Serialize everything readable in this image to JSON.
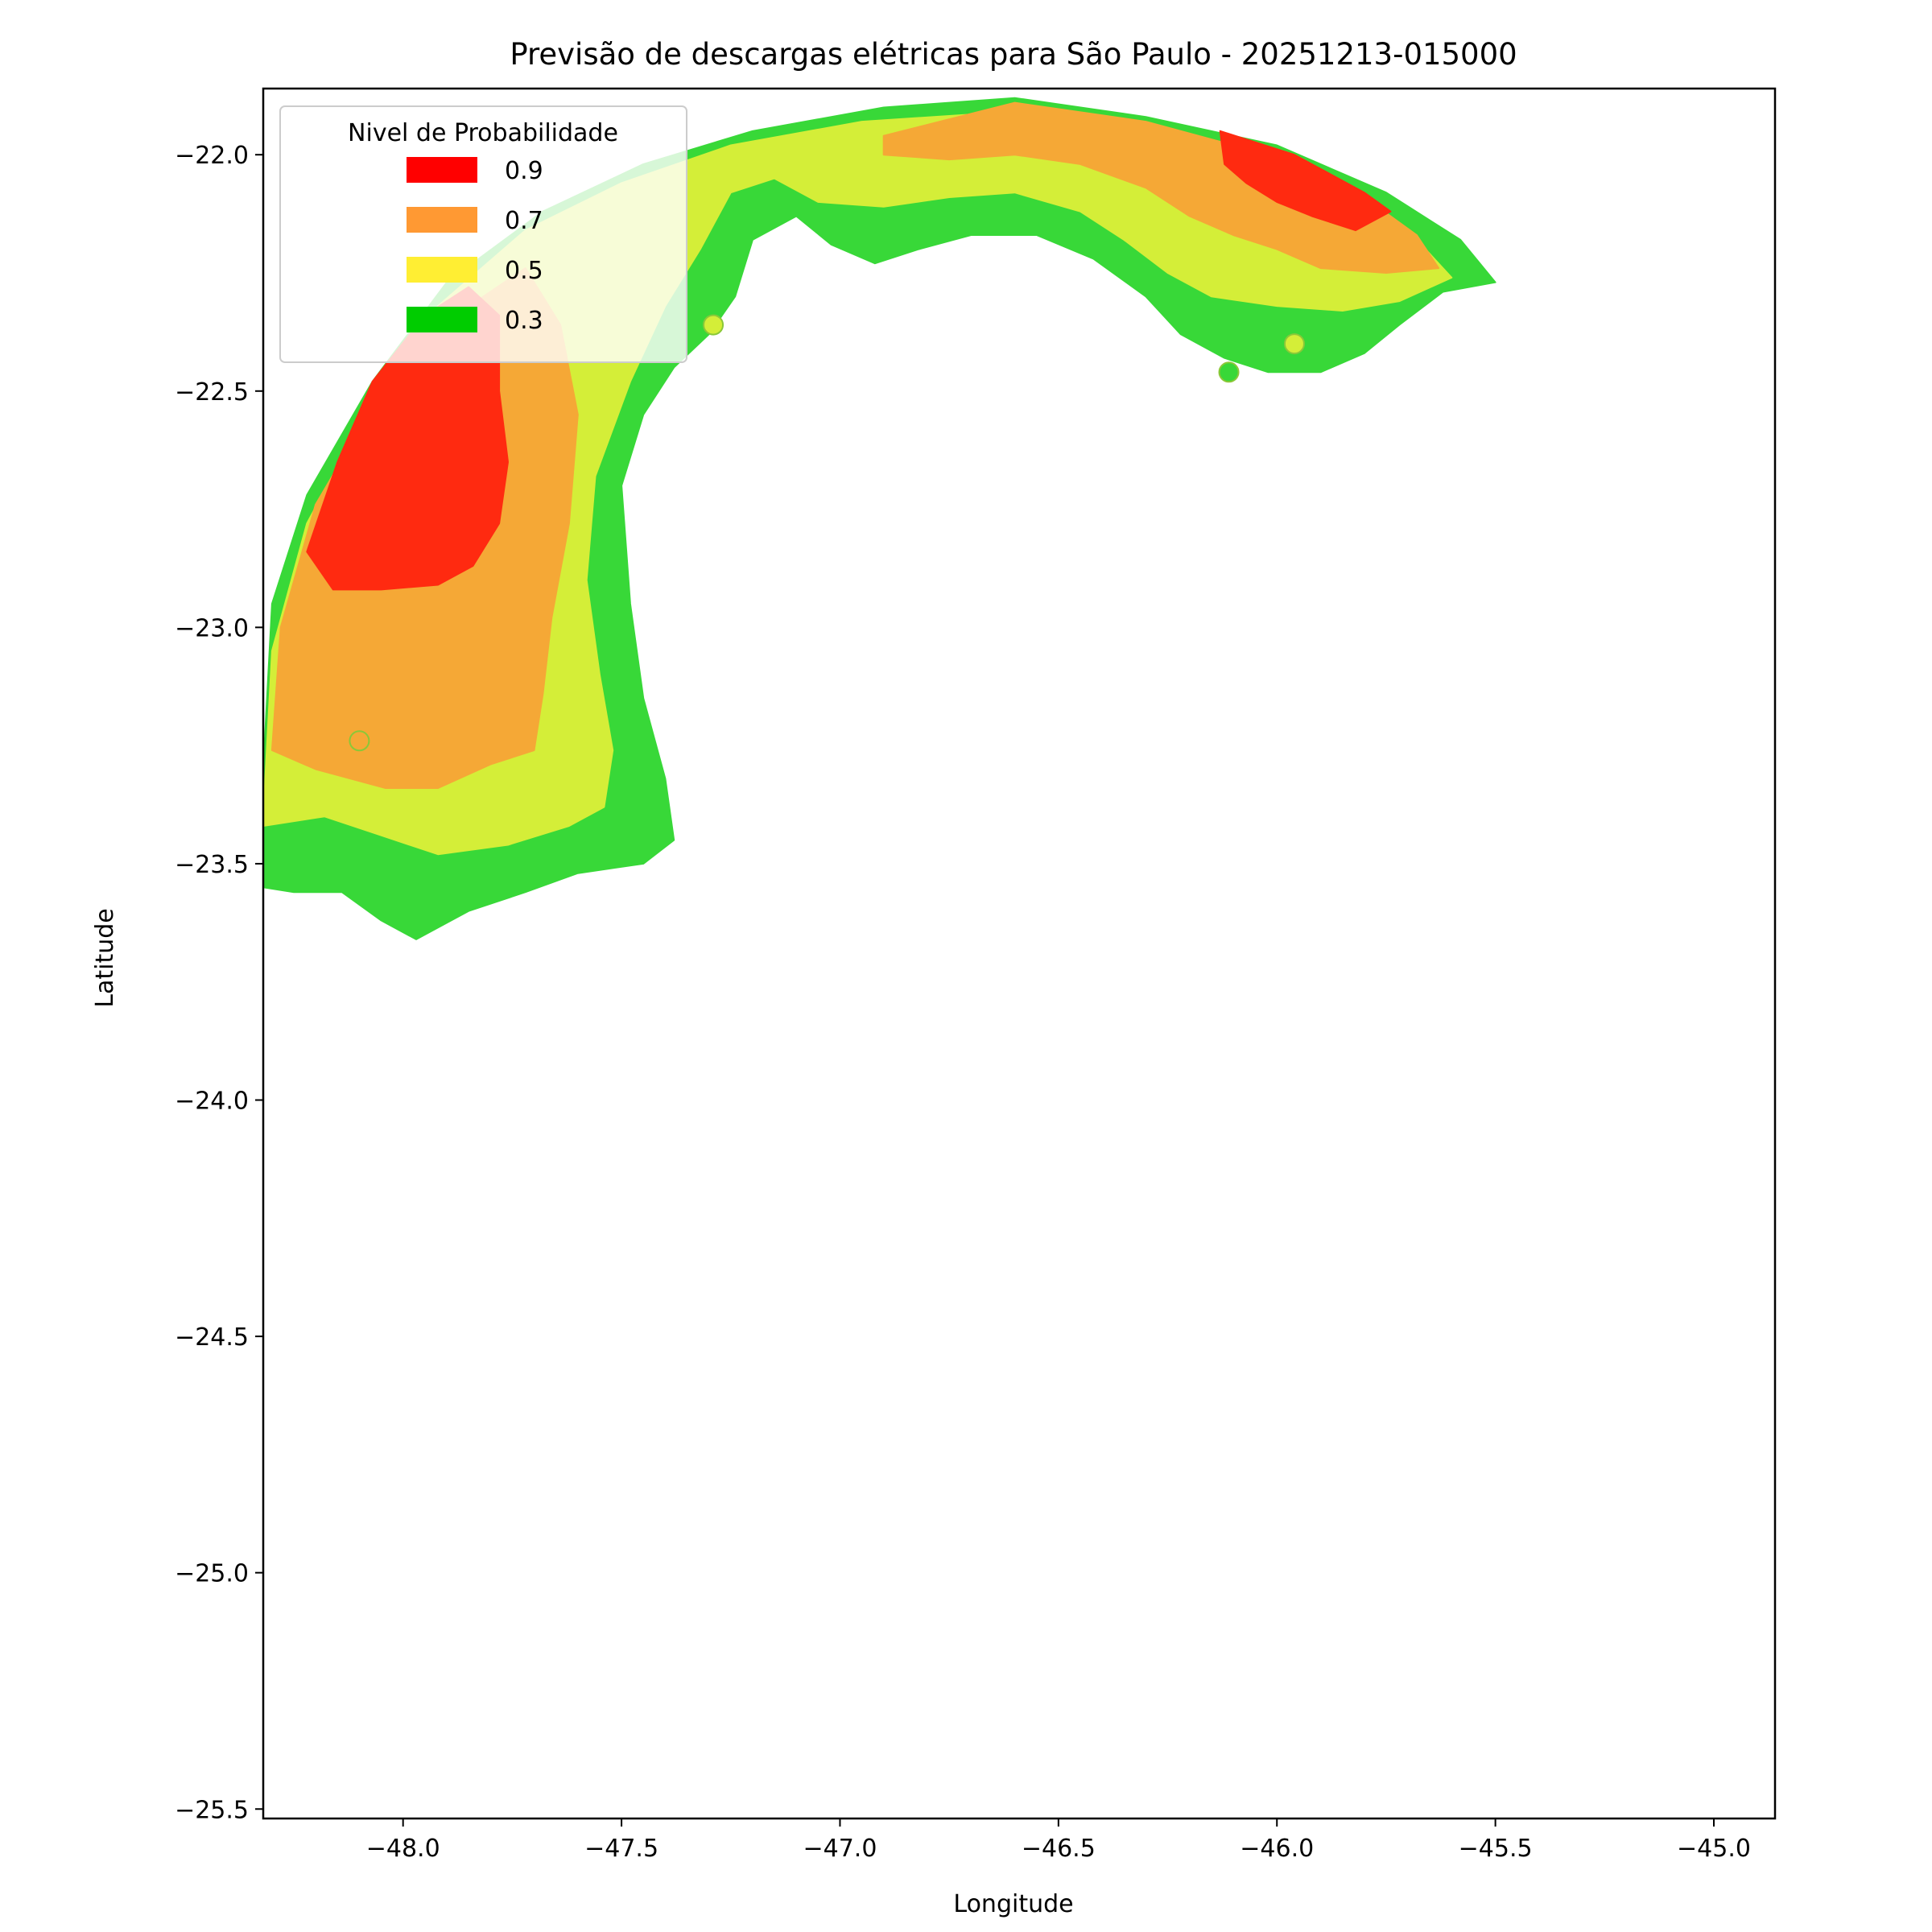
{
  "chart_data": {
    "type": "heatmap",
    "title": "Previsão de descargas elétricas para São Paulo - 20251213-015000",
    "xlabel": "Longitude",
    "ylabel": "Latitude",
    "xlim": [
      -48.32,
      -44.86
    ],
    "ylim": [
      -25.52,
      -21.86
    ],
    "xticks": [
      -48.0,
      -47.5,
      -47.0,
      -46.5,
      -46.0,
      -45.5,
      -45.0
    ],
    "xtick_labels": [
      "−48.0",
      "−47.5",
      "−47.0",
      "−46.5",
      "−46.0",
      "−45.5",
      "−45.0"
    ],
    "yticks": [
      -22.0,
      -22.5,
      -23.0,
      -23.5,
      -24.0,
      -24.5,
      -25.0,
      -25.5
    ],
    "ytick_labels": [
      "−22.0",
      "−22.5",
      "−23.0",
      "−23.5",
      "−24.0",
      "−24.5",
      "−25.0",
      "−25.5"
    ],
    "grid": false,
    "legend": {
      "title": "Nivel de Probabilidade",
      "placement": "upper-left",
      "entries": [
        {
          "label": "0.9",
          "color": "#ff0000"
        },
        {
          "label": "0.7",
          "color": "#ff9933"
        },
        {
          "label": "0.5",
          "color": "#ffee33"
        },
        {
          "label": "0.3",
          "color": "#00cc00"
        }
      ]
    },
    "fill_colors": {
      "0.9": "#ff2a10",
      "0.7": "#f5a836",
      "0.5": "#d4ee38",
      "0.3": "#38d838"
    },
    "regions": [
      {
        "level": "0.3",
        "polygon": [
          [
            -48.32,
            -23.3
          ],
          [
            -48.3,
            -22.95
          ],
          [
            -48.22,
            -22.72
          ],
          [
            -48.07,
            -22.48
          ],
          [
            -47.9,
            -22.27
          ],
          [
            -47.68,
            -22.12
          ],
          [
            -47.45,
            -22.02
          ],
          [
            -47.2,
            -21.95
          ],
          [
            -46.9,
            -21.9
          ],
          [
            -46.6,
            -21.88
          ],
          [
            -46.3,
            -21.92
          ],
          [
            -46.0,
            -21.98
          ],
          [
            -45.75,
            -22.08
          ],
          [
            -45.58,
            -22.18
          ],
          [
            -45.5,
            -22.27
          ],
          [
            -45.62,
            -22.29
          ],
          [
            -45.72,
            -22.36
          ],
          [
            -45.8,
            -22.42
          ],
          [
            -45.9,
            -22.46
          ],
          [
            -46.02,
            -22.46
          ],
          [
            -46.12,
            -22.43
          ],
          [
            -46.22,
            -22.38
          ],
          [
            -46.3,
            -22.3
          ],
          [
            -46.42,
            -22.22
          ],
          [
            -46.55,
            -22.17
          ],
          [
            -46.7,
            -22.17
          ],
          [
            -46.82,
            -22.2
          ],
          [
            -46.92,
            -22.23
          ],
          [
            -47.02,
            -22.19
          ],
          [
            -47.1,
            -22.13
          ],
          [
            -47.2,
            -22.18
          ],
          [
            -47.24,
            -22.3
          ],
          [
            -47.3,
            -22.38
          ],
          [
            -47.38,
            -22.45
          ],
          [
            -47.45,
            -22.55
          ],
          [
            -47.5,
            -22.7
          ],
          [
            -47.48,
            -22.95
          ],
          [
            -47.45,
            -23.15
          ],
          [
            -47.4,
            -23.32
          ],
          [
            -47.38,
            -23.45
          ],
          [
            -47.45,
            -23.5
          ],
          [
            -47.6,
            -23.52
          ],
          [
            -47.72,
            -23.56
          ],
          [
            -47.85,
            -23.6
          ],
          [
            -47.97,
            -23.66
          ],
          [
            -48.05,
            -23.62
          ],
          [
            -48.14,
            -23.56
          ],
          [
            -48.25,
            -23.56
          ],
          [
            -48.32,
            -23.55
          ]
        ]
      },
      {
        "level": "0.5",
        "polygon": [
          [
            -48.32,
            -23.4
          ],
          [
            -48.3,
            -23.05
          ],
          [
            -48.22,
            -22.78
          ],
          [
            -48.08,
            -22.54
          ],
          [
            -47.92,
            -22.32
          ],
          [
            -47.72,
            -22.16
          ],
          [
            -47.5,
            -22.06
          ],
          [
            -47.25,
            -21.98
          ],
          [
            -46.95,
            -21.93
          ],
          [
            -46.62,
            -21.91
          ],
          [
            -46.3,
            -21.95
          ],
          [
            -46.02,
            -22.02
          ],
          [
            -45.8,
            -22.11
          ],
          [
            -45.66,
            -22.2
          ],
          [
            -45.6,
            -22.26
          ],
          [
            -45.72,
            -22.31
          ],
          [
            -45.85,
            -22.33
          ],
          [
            -46.0,
            -22.32
          ],
          [
            -46.15,
            -22.3
          ],
          [
            -46.25,
            -22.25
          ],
          [
            -46.35,
            -22.18
          ],
          [
            -46.45,
            -22.12
          ],
          [
            -46.6,
            -22.08
          ],
          [
            -46.75,
            -22.09
          ],
          [
            -46.9,
            -22.11
          ],
          [
            -47.05,
            -22.1
          ],
          [
            -47.15,
            -22.05
          ],
          [
            -47.25,
            -22.08
          ],
          [
            -47.32,
            -22.2
          ],
          [
            -47.4,
            -22.32
          ],
          [
            -47.48,
            -22.48
          ],
          [
            -47.56,
            -22.68
          ],
          [
            -47.58,
            -22.9
          ],
          [
            -47.55,
            -23.1
          ],
          [
            -47.52,
            -23.26
          ],
          [
            -47.54,
            -23.38
          ],
          [
            -47.62,
            -23.42
          ],
          [
            -47.76,
            -23.46
          ],
          [
            -47.92,
            -23.48
          ],
          [
            -48.05,
            -23.44
          ],
          [
            -48.18,
            -23.4
          ],
          [
            -48.32,
            -23.42
          ]
        ]
      },
      {
        "level": "0.7",
        "polygon": [
          [
            -48.3,
            -23.26
          ],
          [
            -48.28,
            -23.0
          ],
          [
            -48.2,
            -22.74
          ],
          [
            -48.06,
            -22.52
          ],
          [
            -47.88,
            -22.34
          ],
          [
            -47.72,
            -22.24
          ],
          [
            -47.64,
            -22.36
          ],
          [
            -47.6,
            -22.55
          ],
          [
            -47.62,
            -22.78
          ],
          [
            -47.66,
            -22.98
          ],
          [
            -47.68,
            -23.14
          ],
          [
            -47.7,
            -23.26
          ],
          [
            -47.8,
            -23.29
          ],
          [
            -47.92,
            -23.34
          ],
          [
            -48.04,
            -23.34
          ],
          [
            -48.12,
            -23.32
          ],
          [
            -48.2,
            -23.3
          ]
        ]
      },
      {
        "level": "0.7",
        "polygon": [
          [
            -46.9,
            -21.96
          ],
          [
            -46.6,
            -21.89
          ],
          [
            -46.3,
            -21.93
          ],
          [
            -46.02,
            -22.0
          ],
          [
            -45.8,
            -22.09
          ],
          [
            -45.68,
            -22.17
          ],
          [
            -45.63,
            -22.24
          ],
          [
            -45.75,
            -22.25
          ],
          [
            -45.9,
            -22.24
          ],
          [
            -46.0,
            -22.2
          ],
          [
            -46.1,
            -22.17
          ],
          [
            -46.2,
            -22.13
          ],
          [
            -46.3,
            -22.07
          ],
          [
            -46.45,
            -22.02
          ],
          [
            -46.6,
            -22.0
          ],
          [
            -46.75,
            -22.01
          ],
          [
            -46.9,
            -22.0
          ]
        ]
      },
      {
        "level": "0.9",
        "polygon": [
          [
            -48.22,
            -22.84
          ],
          [
            -48.15,
            -22.65
          ],
          [
            -48.07,
            -22.48
          ],
          [
            -47.95,
            -22.34
          ],
          [
            -47.85,
            -22.28
          ],
          [
            -47.78,
            -22.34
          ],
          [
            -47.78,
            -22.5
          ],
          [
            -47.76,
            -22.65
          ],
          [
            -47.78,
            -22.78
          ],
          [
            -47.84,
            -22.87
          ],
          [
            -47.92,
            -22.91
          ],
          [
            -48.05,
            -22.92
          ],
          [
            -48.16,
            -22.92
          ]
        ]
      },
      {
        "level": "0.9",
        "polygon": [
          [
            -46.13,
            -21.95
          ],
          [
            -45.96,
            -22.0
          ],
          [
            -45.8,
            -22.08
          ],
          [
            -45.74,
            -22.12
          ],
          [
            -45.82,
            -22.16
          ],
          [
            -45.92,
            -22.13
          ],
          [
            -46.0,
            -22.1
          ],
          [
            -46.07,
            -22.06
          ],
          [
            -46.12,
            -22.02
          ]
        ]
      }
    ],
    "markers": [
      {
        "level": "0.7",
        "lon": -48.1,
        "lat": -23.24
      },
      {
        "level": "0.5",
        "lon": -47.29,
        "lat": -22.36
      },
      {
        "level": "0.5",
        "lon": -45.96,
        "lat": -22.4
      },
      {
        "level": "0.3",
        "lon": -46.11,
        "lat": -22.46
      }
    ]
  }
}
